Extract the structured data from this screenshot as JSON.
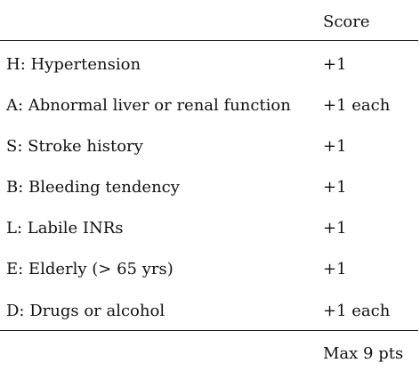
{
  "table": {
    "header": {
      "label": "",
      "score": "Score"
    },
    "rows": [
      {
        "label": "H: Hypertension",
        "score": "+1"
      },
      {
        "label": "A: Abnormal liver or renal function",
        "score": "+1 each"
      },
      {
        "label": "S: Stroke history",
        "score": "+1"
      },
      {
        "label": "B: Bleeding tendency",
        "score": "+1"
      },
      {
        "label": "L: Labile INRs",
        "score": "+1"
      },
      {
        "label": "E: Elderly (> 65 yrs)",
        "score": "+1"
      },
      {
        "label": "D: Drugs or alcohol",
        "score": "+1 each"
      }
    ],
    "footer": {
      "label": "",
      "score": "Max 9 pts"
    }
  }
}
